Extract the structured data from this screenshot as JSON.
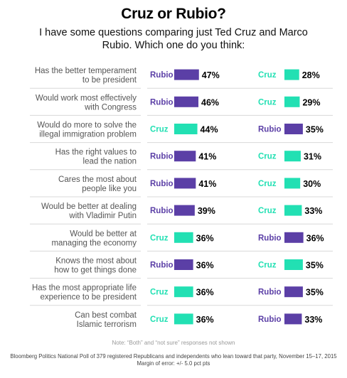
{
  "title": "Cruz or Rubio?",
  "subtitle": "I have some questions comparing just Ted Cruz and Marco Rubio. Which one do you think:",
  "note": "Note: “Both” and “not sure” responses not shown",
  "source": "Bloomberg Politics National Poll of 379 registered Republicans and independents who lean toward that party, November 15–17, 2015",
  "margin": "Margin of error: +/- 5.0 pct pts",
  "colors": {
    "Rubio": "#5b3fa6",
    "Cruz": "#22e0b3",
    "divider": "#d8d8d8"
  },
  "chart_data": {
    "type": "bar",
    "questions": [
      {
        "lines": [
          "Has the better temperament",
          "to be president"
        ],
        "left": {
          "name": "Rubio",
          "value": 47,
          "label": "47%"
        },
        "right": {
          "name": "Cruz",
          "value": 28,
          "label": "28%"
        }
      },
      {
        "lines": [
          "Would work most effectively",
          "with Congress"
        ],
        "left": {
          "name": "Rubio",
          "value": 46,
          "label": "46%"
        },
        "right": {
          "name": "Cruz",
          "value": 29,
          "label": "29%"
        }
      },
      {
        "lines": [
          "Would do more to solve the",
          "illegal immigration problem"
        ],
        "left": {
          "name": "Cruz",
          "value": 44,
          "label": "44%"
        },
        "right": {
          "name": "Rubio",
          "value": 35,
          "label": "35%"
        }
      },
      {
        "lines": [
          "Has the right values to",
          "lead the nation"
        ],
        "left": {
          "name": "Rubio",
          "value": 41,
          "label": "41%"
        },
        "right": {
          "name": "Cruz",
          "value": 31,
          "label": "31%"
        }
      },
      {
        "lines": [
          "Cares the most about",
          "people like you"
        ],
        "left": {
          "name": "Rubio",
          "value": 41,
          "label": "41%"
        },
        "right": {
          "name": "Cruz",
          "value": 30,
          "label": "30%"
        }
      },
      {
        "lines": [
          "Would be better at dealing",
          "with Vladimir Putin"
        ],
        "left": {
          "name": "Rubio",
          "value": 39,
          "label": "39%"
        },
        "right": {
          "name": "Cruz",
          "value": 33,
          "label": "33%"
        }
      },
      {
        "lines": [
          "Would be better at",
          "managing the economy"
        ],
        "left": {
          "name": "Cruz",
          "value": 36,
          "label": "36%"
        },
        "right": {
          "name": "Rubio",
          "value": 36,
          "label": "36%"
        }
      },
      {
        "lines": [
          "Knows the most about",
          "how to get things done"
        ],
        "left": {
          "name": "Rubio",
          "value": 36,
          "label": "36%"
        },
        "right": {
          "name": "Cruz",
          "value": 35,
          "label": "35%"
        }
      },
      {
        "lines": [
          "Has the most appropriate life",
          "experience to be president"
        ],
        "left": {
          "name": "Cruz",
          "value": 36,
          "label": "36%"
        },
        "right": {
          "name": "Rubio",
          "value": 35,
          "label": "35%"
        }
      },
      {
        "lines": [
          "Can best combat",
          "Islamic terrorism"
        ],
        "left": {
          "name": "Cruz",
          "value": 36,
          "label": "36%"
        },
        "right": {
          "name": "Rubio",
          "value": 33,
          "label": "33%"
        }
      }
    ]
  }
}
